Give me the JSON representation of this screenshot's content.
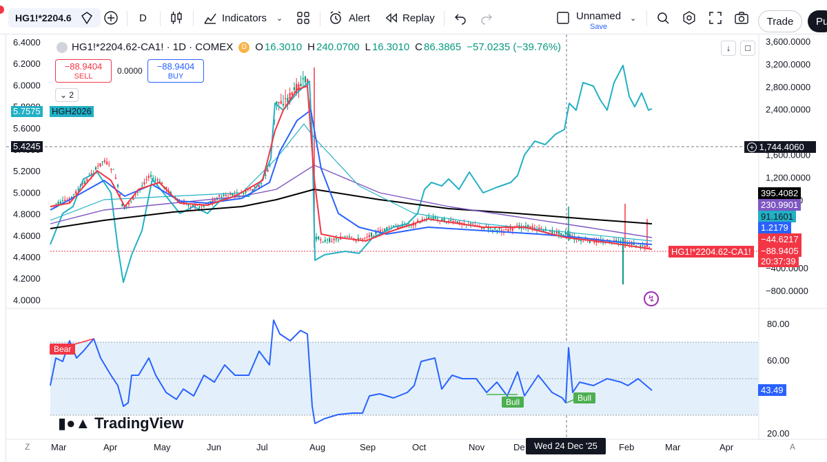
{
  "toolbar": {
    "symbol": "HG1!*2204.6",
    "interval": "D",
    "indicators_label": "Indicators",
    "alert_label": "Alert",
    "replay_label": "Replay",
    "layout_name": "Unnamed",
    "save_label": "Save",
    "trade_label": "Trade",
    "publish_label": "Pu"
  },
  "legend": {
    "title": "HG1!*2204.62-CA1! · 1D · COMEX",
    "d_badge": "D",
    "o_label": "O",
    "o_value": "16.3010",
    "h_label": "H",
    "h_value": "240.0700",
    "l_label": "L",
    "l_value": "16.3010",
    "c_label": "C",
    "c_value": "86.3865",
    "change": "−57.0235 (−39.76%)"
  },
  "orders": {
    "sell_value": "−88.9404",
    "sell_label": "SELL",
    "spread": "0.0000",
    "buy_value": "−88.9404",
    "buy_label": "BUY",
    "collapse_count": "2"
  },
  "left_tags": {
    "hgh_value": "5.7575",
    "hgh_name": "HGH2026",
    "crosshair_left": "5.4245"
  },
  "right_tags": {
    "crosshair": "1,744.4060",
    "t1": "395.4082",
    "t2": "230.9901",
    "t3": "91.1601",
    "t4": "1.2179",
    "t5": "−44.6217",
    "t6": "−88.9405",
    "t6_time": "20:37:39",
    "symbol_tag": "HG1!*2204.62-CA1!",
    "rsi_value": "43.49"
  },
  "colors": {
    "black_line": "#000000",
    "purple_line": "#7e57c2",
    "cyan_line": "#22b0c5",
    "blue_line": "#2962ff",
    "red_line": "#f23645",
    "up_candle": "#089981",
    "down_candle": "#f23645",
    "rsi_line": "#2962ff",
    "rsi_band": "#e3f0fb"
  },
  "axes": {
    "left_ticks": [
      "6.4000",
      "6.2000",
      "6.0000",
      "5.8000",
      "5.6000",
      "5.4000",
      "5.2000",
      "5.0000",
      "4.8000",
      "4.6000",
      "4.4000",
      "4.2000",
      "4.0000"
    ],
    "right_ticks": [
      "3,600.0000",
      "3,200.0000",
      "2,800.0000",
      "2,400.0000",
      "2,000.0000",
      "1,600.0000",
      "1,200.0000",
      "800.0000",
      "400.0000",
      "0.0000",
      "−400.0000",
      "−800.0000"
    ],
    "rsi_ticks": [
      "80.00",
      "60.00",
      "40.00",
      "20.00"
    ],
    "x_labels": [
      "Mar",
      "Apr",
      "May",
      "Jun",
      "Jul",
      "Aug",
      "Sep",
      "Oct",
      "Nov",
      "De",
      "Feb",
      "Mar",
      "Apr"
    ],
    "crosshair_date": "Wed 24 Dec '25",
    "z_label": "Z",
    "a_label": "A"
  },
  "rsi": {
    "bear_label": "Bear",
    "bull_label_1": "Bull",
    "bull_label_2": "Bull"
  },
  "brand": {
    "name": "TradingView"
  }
}
